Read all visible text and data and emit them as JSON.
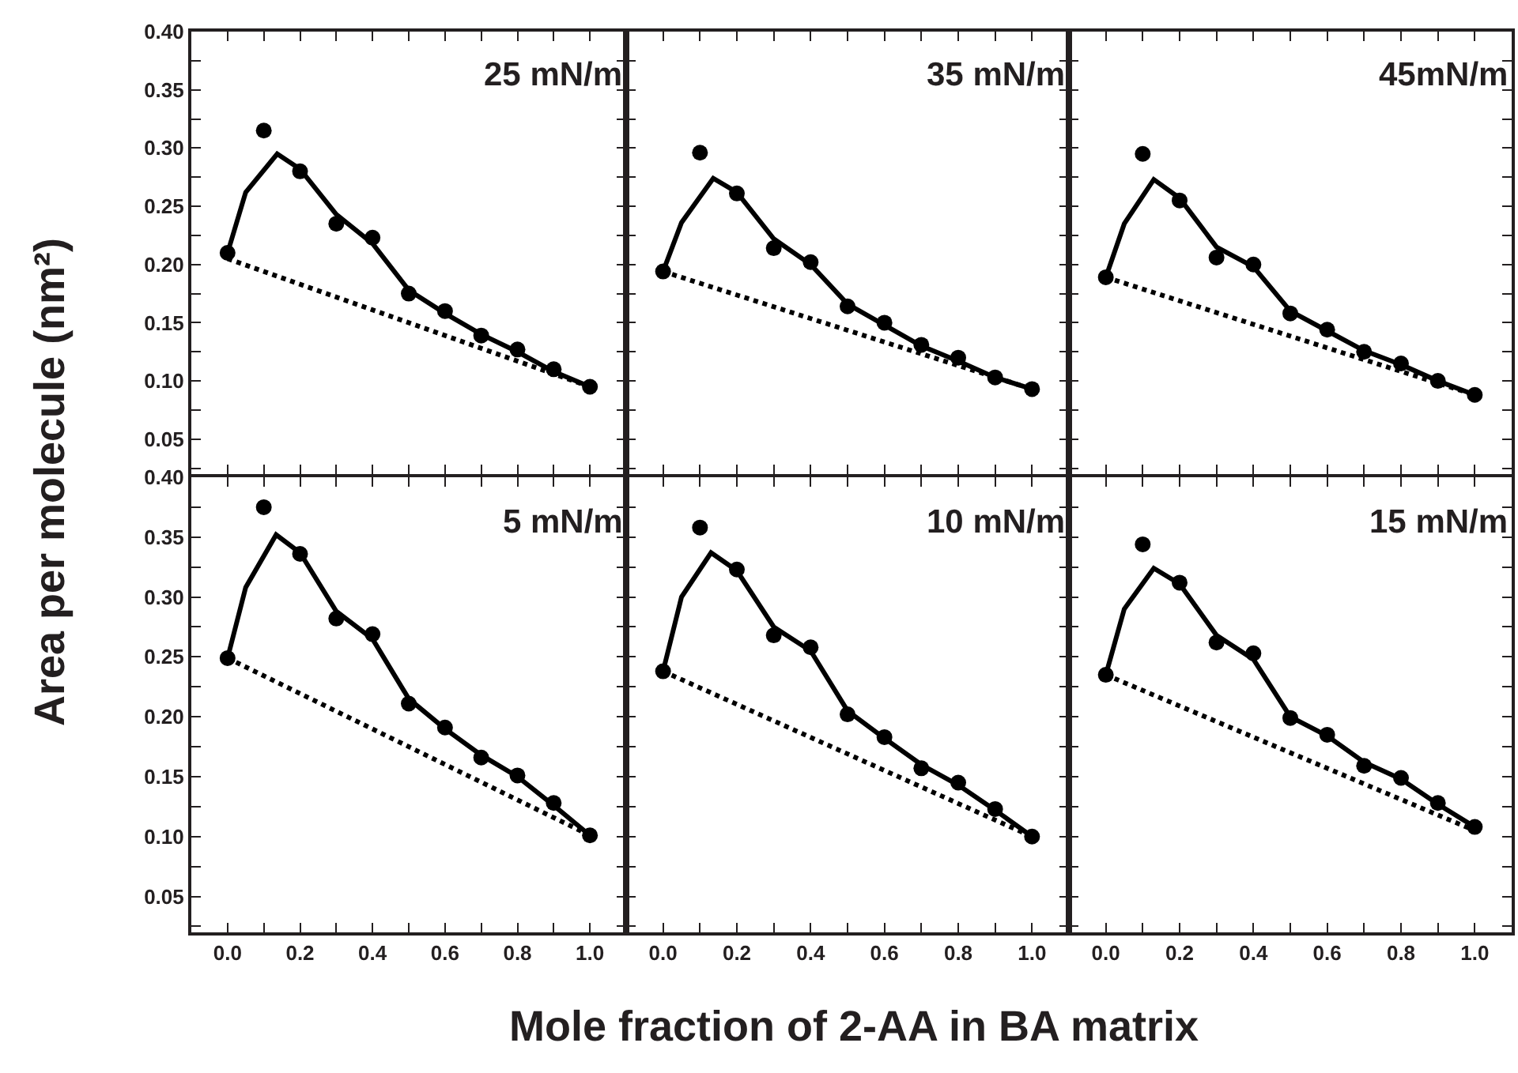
{
  "chart_data": [
    {
      "type": "scatter",
      "ylabel": "Area per molecule (nm²)",
      "annotations": [
        "25 mN/m"
      ],
      "xlim": [
        -0.1,
        1.1
      ],
      "ylim": [
        0.02,
        0.4
      ],
      "tick_labels": "y",
      "xticks": [
        {
          "value": 0,
          "label": null
        },
        {
          "value": 0.1,
          "label": null
        },
        {
          "value": 0.2,
          "label": null
        },
        {
          "value": 0.3,
          "label": null
        },
        {
          "value": 0.4,
          "label": null
        },
        {
          "value": 0.5,
          "label": null
        },
        {
          "value": 0.6,
          "label": null
        },
        {
          "value": 0.7,
          "label": null
        },
        {
          "value": 0.8,
          "label": null
        },
        {
          "value": 0.9,
          "label": null
        },
        {
          "value": 1,
          "label": null
        }
      ],
      "yticks": [
        {
          "value": 0.025,
          "label": null
        },
        {
          "value": 0.05,
          "label": "0.05"
        },
        {
          "value": 0.075,
          "label": null
        },
        {
          "value": 0.1,
          "label": "0.10"
        },
        {
          "value": 0.125,
          "label": null
        },
        {
          "value": 0.15,
          "label": "0.15"
        },
        {
          "value": 0.175,
          "label": null
        },
        {
          "value": 0.2,
          "label": "0.20"
        },
        {
          "value": 0.225,
          "label": null
        },
        {
          "value": 0.25,
          "label": "0.25"
        },
        {
          "value": 0.275,
          "label": null
        },
        {
          "value": 0.3,
          "label": "0.30"
        },
        {
          "value": 0.325,
          "label": null
        },
        {
          "value": 0.35,
          "label": "0.35"
        },
        {
          "value": 0.375,
          "label": null
        },
        {
          "value": 0.4,
          "label": "0.40"
        }
      ],
      "x": [
        0,
        0.1,
        0.2,
        0.3,
        0.4,
        0.5,
        0.6,
        0.7,
        0.8,
        0.9,
        1
      ],
      "series": [
        {
          "type": "scatter",
          "marker": "circle",
          "color": "#000000",
          "values": [
            0.21,
            0.315,
            0.28,
            0.235,
            0.223,
            0.175,
            0.16,
            0.139,
            0.127,
            0.11,
            0.095
          ]
        },
        {
          "type": "line",
          "marker": "none",
          "line_style": "solid",
          "color": "#000000",
          "x": [
            0,
            0.05,
            0.137,
            0.2,
            0.3,
            0.4,
            0.5,
            0.6,
            0.7,
            0.8,
            0.9,
            1
          ],
          "values": [
            0.21,
            0.262,
            0.295,
            0.282,
            0.243,
            0.218,
            0.178,
            0.158,
            0.14,
            0.125,
            0.108,
            0.095
          ]
        },
        {
          "type": "line",
          "marker": "none",
          "line_style": "dotted",
          "color": "#000000",
          "x": [
            0,
            1
          ],
          "values": [
            0.205,
            0.095
          ]
        }
      ]
    },
    {
      "type": "scatter",
      "annotations": [
        "35 mN/m"
      ],
      "xlim": [
        -0.1,
        1.1
      ],
      "ylim": [
        0.02,
        0.4
      ],
      "tick_labels": false,
      "xticks": [
        {
          "value": 0,
          "label": null
        },
        {
          "value": 0.1,
          "label": null
        },
        {
          "value": 0.2,
          "label": null
        },
        {
          "value": 0.3,
          "label": null
        },
        {
          "value": 0.4,
          "label": null
        },
        {
          "value": 0.5,
          "label": null
        },
        {
          "value": 0.6,
          "label": null
        },
        {
          "value": 0.7,
          "label": null
        },
        {
          "value": 0.8,
          "label": null
        },
        {
          "value": 0.9,
          "label": null
        },
        {
          "value": 1,
          "label": null
        }
      ],
      "yticks": [
        {
          "value": 0.025,
          "label": null
        },
        {
          "value": 0.05,
          "label": null
        },
        {
          "value": 0.075,
          "label": null
        },
        {
          "value": 0.1,
          "label": null
        },
        {
          "value": 0.125,
          "label": null
        },
        {
          "value": 0.15,
          "label": null
        },
        {
          "value": 0.175,
          "label": null
        },
        {
          "value": 0.2,
          "label": null
        },
        {
          "value": 0.225,
          "label": null
        },
        {
          "value": 0.25,
          "label": null
        },
        {
          "value": 0.275,
          "label": null
        },
        {
          "value": 0.3,
          "label": null
        },
        {
          "value": 0.325,
          "label": null
        },
        {
          "value": 0.35,
          "label": null
        },
        {
          "value": 0.375,
          "label": null
        },
        {
          "value": 0.4,
          "label": null
        }
      ],
      "x": [
        0,
        0.1,
        0.2,
        0.3,
        0.4,
        0.5,
        0.6,
        0.7,
        0.8,
        0.9,
        1
      ],
      "series": [
        {
          "type": "scatter",
          "marker": "circle",
          "color": "#000000",
          "values": [
            0.194,
            0.296,
            0.261,
            0.214,
            0.202,
            0.164,
            0.15,
            0.131,
            0.12,
            0.103,
            0.093
          ]
        },
        {
          "type": "line",
          "marker": "none",
          "line_style": "solid",
          "color": "#000000",
          "x": [
            0,
            0.05,
            0.136,
            0.2,
            0.3,
            0.4,
            0.5,
            0.6,
            0.7,
            0.8,
            0.9,
            1
          ],
          "values": [
            0.194,
            0.236,
            0.274,
            0.262,
            0.222,
            0.2,
            0.166,
            0.148,
            0.13,
            0.117,
            0.103,
            0.093
          ]
        },
        {
          "type": "line",
          "marker": "none",
          "line_style": "dotted",
          "color": "#000000",
          "x": [
            0,
            1
          ],
          "values": [
            0.194,
            0.093
          ]
        }
      ]
    },
    {
      "type": "scatter",
      "annotations": [
        "45mN/m"
      ],
      "xlim": [
        -0.1,
        1.1
      ],
      "ylim": [
        0.02,
        0.4
      ],
      "tick_labels": false,
      "xticks": [
        {
          "value": 0,
          "label": null
        },
        {
          "value": 0.1,
          "label": null
        },
        {
          "value": 0.2,
          "label": null
        },
        {
          "value": 0.3,
          "label": null
        },
        {
          "value": 0.4,
          "label": null
        },
        {
          "value": 0.5,
          "label": null
        },
        {
          "value": 0.6,
          "label": null
        },
        {
          "value": 0.7,
          "label": null
        },
        {
          "value": 0.8,
          "label": null
        },
        {
          "value": 0.9,
          "label": null
        },
        {
          "value": 1,
          "label": null
        }
      ],
      "yticks": [
        {
          "value": 0.025,
          "label": null
        },
        {
          "value": 0.05,
          "label": null
        },
        {
          "value": 0.075,
          "label": null
        },
        {
          "value": 0.1,
          "label": null
        },
        {
          "value": 0.125,
          "label": null
        },
        {
          "value": 0.15,
          "label": null
        },
        {
          "value": 0.175,
          "label": null
        },
        {
          "value": 0.2,
          "label": null
        },
        {
          "value": 0.225,
          "label": null
        },
        {
          "value": 0.25,
          "label": null
        },
        {
          "value": 0.275,
          "label": null
        },
        {
          "value": 0.3,
          "label": null
        },
        {
          "value": 0.325,
          "label": null
        },
        {
          "value": 0.35,
          "label": null
        },
        {
          "value": 0.375,
          "label": null
        },
        {
          "value": 0.4,
          "label": null
        }
      ],
      "x": [
        0,
        0.1,
        0.2,
        0.3,
        0.4,
        0.5,
        0.6,
        0.7,
        0.8,
        0.9,
        1
      ],
      "series": [
        {
          "type": "scatter",
          "marker": "circle",
          "color": "#000000",
          "values": [
            0.189,
            0.295,
            0.255,
            0.206,
            0.2,
            0.158,
            0.144,
            0.125,
            0.115,
            0.1,
            0.088
          ]
        },
        {
          "type": "line",
          "marker": "none",
          "line_style": "solid",
          "color": "#000000",
          "x": [
            0,
            0.05,
            0.13,
            0.2,
            0.3,
            0.4,
            0.5,
            0.6,
            0.7,
            0.8,
            0.9,
            1
          ],
          "values": [
            0.189,
            0.235,
            0.273,
            0.257,
            0.215,
            0.198,
            0.16,
            0.143,
            0.126,
            0.114,
            0.1,
            0.088
          ]
        },
        {
          "type": "line",
          "marker": "none",
          "line_style": "dotted",
          "color": "#000000",
          "x": [
            0,
            1
          ],
          "values": [
            0.189,
            0.088
          ]
        }
      ]
    },
    {
      "type": "scatter",
      "annotations": [
        "5 mN/m"
      ],
      "xlim": [
        -0.1,
        1.1
      ],
      "ylim": [
        0.02,
        0.4
      ],
      "xticks": [
        {
          "value": 0,
          "label": "0.0"
        },
        {
          "value": 0.1,
          "label": null
        },
        {
          "value": 0.2,
          "label": "0.2"
        },
        {
          "value": 0.3,
          "label": null
        },
        {
          "value": 0.4,
          "label": "0.4"
        },
        {
          "value": 0.5,
          "label": null
        },
        {
          "value": 0.6,
          "label": "0.6"
        },
        {
          "value": 0.7,
          "label": null
        },
        {
          "value": 0.8,
          "label": "0.8"
        },
        {
          "value": 0.9,
          "label": null
        },
        {
          "value": 1,
          "label": "1.0"
        }
      ],
      "yticks": [
        {
          "value": 0.025,
          "label": null
        },
        {
          "value": 0.05,
          "label": "0.05"
        },
        {
          "value": 0.075,
          "label": null
        },
        {
          "value": 0.1,
          "label": "0.10"
        },
        {
          "value": 0.125,
          "label": null
        },
        {
          "value": 0.15,
          "label": "0.15"
        },
        {
          "value": 0.175,
          "label": null
        },
        {
          "value": 0.2,
          "label": "0.20"
        },
        {
          "value": 0.225,
          "label": null
        },
        {
          "value": 0.25,
          "label": "0.25"
        },
        {
          "value": 0.275,
          "label": null
        },
        {
          "value": 0.3,
          "label": "0.30"
        },
        {
          "value": 0.325,
          "label": null
        },
        {
          "value": 0.35,
          "label": "0.35"
        },
        {
          "value": 0.375,
          "label": null
        },
        {
          "value": 0.4,
          "label": "0.40"
        }
      ],
      "x": [
        0,
        0.1,
        0.2,
        0.3,
        0.4,
        0.5,
        0.6,
        0.7,
        0.8,
        0.9,
        1
      ],
      "series": [
        {
          "type": "scatter",
          "marker": "circle",
          "color": "#000000",
          "values": [
            0.249,
            0.375,
            0.336,
            0.282,
            0.269,
            0.211,
            0.191,
            0.166,
            0.151,
            0.128,
            0.101
          ]
        },
        {
          "type": "line",
          "marker": "none",
          "line_style": "solid",
          "color": "#000000",
          "x": [
            0,
            0.05,
            0.134,
            0.2,
            0.3,
            0.4,
            0.5,
            0.6,
            0.7,
            0.8,
            0.9,
            1
          ],
          "values": [
            0.249,
            0.308,
            0.352,
            0.337,
            0.288,
            0.265,
            0.215,
            0.19,
            0.168,
            0.15,
            0.126,
            0.101
          ]
        },
        {
          "type": "line",
          "marker": "none",
          "line_style": "dotted",
          "color": "#000000",
          "x": [
            0,
            1
          ],
          "values": [
            0.249,
            0.101
          ]
        }
      ]
    },
    {
      "type": "scatter",
      "xlabel": "Mole fraction of 2-AA in BA matrix",
      "annotations": [
        "10 mN/m"
      ],
      "xlim": [
        -0.1,
        1.1
      ],
      "ylim": [
        0.02,
        0.4
      ],
      "tick_labels": "x",
      "xticks": [
        {
          "value": 0,
          "label": "0.0"
        },
        {
          "value": 0.1,
          "label": null
        },
        {
          "value": 0.2,
          "label": "0.2"
        },
        {
          "value": 0.3,
          "label": null
        },
        {
          "value": 0.4,
          "label": "0.4"
        },
        {
          "value": 0.5,
          "label": null
        },
        {
          "value": 0.6,
          "label": "0.6"
        },
        {
          "value": 0.7,
          "label": null
        },
        {
          "value": 0.8,
          "label": "0.8"
        },
        {
          "value": 0.9,
          "label": null
        },
        {
          "value": 1,
          "label": "1.0"
        }
      ],
      "yticks": [
        {
          "value": 0.025,
          "label": null
        },
        {
          "value": 0.05,
          "label": null
        },
        {
          "value": 0.075,
          "label": null
        },
        {
          "value": 0.1,
          "label": null
        },
        {
          "value": 0.125,
          "label": null
        },
        {
          "value": 0.15,
          "label": null
        },
        {
          "value": 0.175,
          "label": null
        },
        {
          "value": 0.2,
          "label": null
        },
        {
          "value": 0.225,
          "label": null
        },
        {
          "value": 0.25,
          "label": null
        },
        {
          "value": 0.275,
          "label": null
        },
        {
          "value": 0.3,
          "label": null
        },
        {
          "value": 0.325,
          "label": null
        },
        {
          "value": 0.35,
          "label": null
        },
        {
          "value": 0.375,
          "label": null
        },
        {
          "value": 0.4,
          "label": null
        }
      ],
      "x": [
        0,
        0.1,
        0.2,
        0.3,
        0.4,
        0.5,
        0.6,
        0.7,
        0.8,
        0.9,
        1
      ],
      "series": [
        {
          "type": "scatter",
          "marker": "circle",
          "color": "#000000",
          "values": [
            0.238,
            0.358,
            0.323,
            0.268,
            0.258,
            0.202,
            0.183,
            0.157,
            0.145,
            0.123,
            0.1
          ]
        },
        {
          "type": "line",
          "marker": "none",
          "line_style": "solid",
          "color": "#000000",
          "x": [
            0,
            0.05,
            0.13,
            0.2,
            0.3,
            0.4,
            0.5,
            0.6,
            0.7,
            0.8,
            0.9,
            1
          ],
          "values": [
            0.238,
            0.3,
            0.337,
            0.322,
            0.275,
            0.255,
            0.205,
            0.182,
            0.16,
            0.143,
            0.122,
            0.1
          ]
        },
        {
          "type": "line",
          "marker": "none",
          "line_style": "dotted",
          "color": "#000000",
          "x": [
            0,
            1
          ],
          "values": [
            0.238,
            0.1
          ]
        }
      ]
    },
    {
      "type": "scatter",
      "annotations": [
        "15 mN/m"
      ],
      "xlim": [
        -0.1,
        1.1
      ],
      "ylim": [
        0.02,
        0.4
      ],
      "tick_labels": "x",
      "xticks": [
        {
          "value": 0,
          "label": "0.0"
        },
        {
          "value": 0.1,
          "label": null
        },
        {
          "value": 0.2,
          "label": "0.2"
        },
        {
          "value": 0.3,
          "label": null
        },
        {
          "value": 0.4,
          "label": "0.4"
        },
        {
          "value": 0.5,
          "label": null
        },
        {
          "value": 0.6,
          "label": "0.6"
        },
        {
          "value": 0.7,
          "label": null
        },
        {
          "value": 0.8,
          "label": "0.8"
        },
        {
          "value": 0.9,
          "label": null
        },
        {
          "value": 1,
          "label": "1.0"
        }
      ],
      "yticks": [
        {
          "value": 0.025,
          "label": null
        },
        {
          "value": 0.05,
          "label": null
        },
        {
          "value": 0.075,
          "label": null
        },
        {
          "value": 0.1,
          "label": null
        },
        {
          "value": 0.125,
          "label": null
        },
        {
          "value": 0.15,
          "label": null
        },
        {
          "value": 0.175,
          "label": null
        },
        {
          "value": 0.2,
          "label": null
        },
        {
          "value": 0.225,
          "label": null
        },
        {
          "value": 0.25,
          "label": null
        },
        {
          "value": 0.275,
          "label": null
        },
        {
          "value": 0.3,
          "label": null
        },
        {
          "value": 0.325,
          "label": null
        },
        {
          "value": 0.35,
          "label": null
        },
        {
          "value": 0.375,
          "label": null
        },
        {
          "value": 0.4,
          "label": null
        }
      ],
      "x": [
        0,
        0.1,
        0.2,
        0.3,
        0.4,
        0.5,
        0.6,
        0.7,
        0.8,
        0.9,
        1
      ],
      "series": [
        {
          "type": "scatter",
          "marker": "circle",
          "color": "#000000",
          "values": [
            0.235,
            0.344,
            0.312,
            0.262,
            0.253,
            0.199,
            0.185,
            0.159,
            0.149,
            0.128,
            0.108
          ]
        },
        {
          "type": "line",
          "marker": "none",
          "line_style": "solid",
          "color": "#000000",
          "x": [
            0,
            0.05,
            0.13,
            0.2,
            0.3,
            0.4,
            0.5,
            0.6,
            0.7,
            0.8,
            0.9,
            1
          ],
          "values": [
            0.235,
            0.29,
            0.324,
            0.311,
            0.268,
            0.248,
            0.2,
            0.184,
            0.162,
            0.148,
            0.127,
            0.108
          ]
        },
        {
          "type": "line",
          "marker": "none",
          "line_style": "dotted",
          "color": "#000000",
          "x": [
            0,
            1
          ],
          "values": [
            0.235,
            0.105
          ]
        }
      ]
    }
  ]
}
